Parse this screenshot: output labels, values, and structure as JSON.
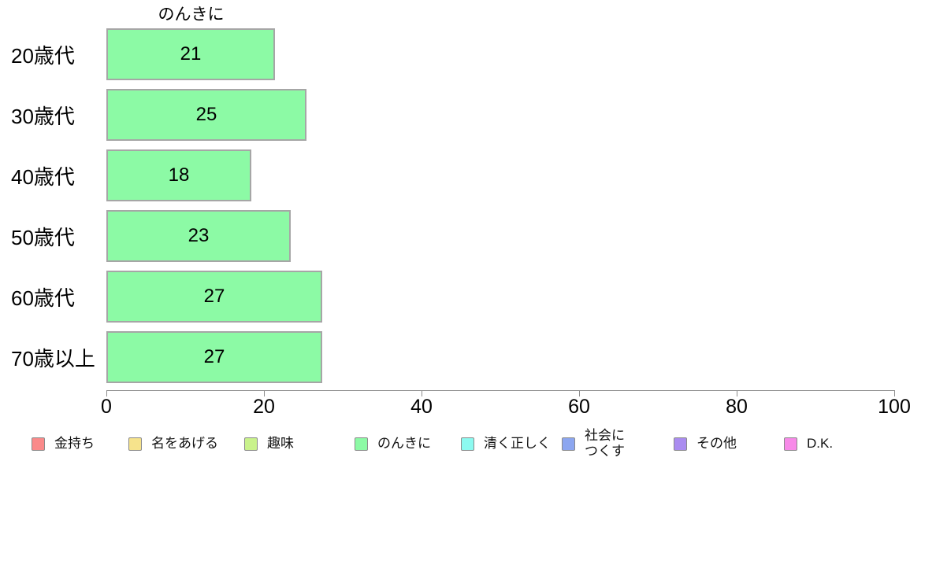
{
  "chart_data": {
    "type": "bar",
    "orientation": "horizontal",
    "title": "のんきに",
    "categories": [
      "20歳代",
      "30歳代",
      "40歳代",
      "50歳代",
      "60歳代",
      "70歳以上"
    ],
    "values": [
      21,
      25,
      18,
      23,
      27,
      27
    ],
    "xlabel": "",
    "ylabel": "",
    "xlim": [
      0,
      100
    ],
    "x_ticks": [
      0,
      20,
      40,
      60,
      80,
      100
    ],
    "grid": "off",
    "legend_position": "bottom",
    "colors": {
      "bar_fill": "#8cfaa5",
      "bar_border": "#a6a6a6",
      "axis": "#8c8c8c"
    },
    "legend": [
      {
        "label": "金持ち",
        "color": "#fa8a8a"
      },
      {
        "label": "名をあげる",
        "color": "#f6e38c"
      },
      {
        "label": "趣味",
        "color": "#c9f28c"
      },
      {
        "label": "のんきに",
        "color": "#8cfaa5"
      },
      {
        "label": "清く正しく",
        "color": "#8cfaf0"
      },
      {
        "label": "社会に\nつくす",
        "color": "#8ca6f0"
      },
      {
        "label": "その他",
        "color": "#aa8cf0"
      },
      {
        "label": "D.K.",
        "color": "#f78ae8"
      }
    ]
  }
}
